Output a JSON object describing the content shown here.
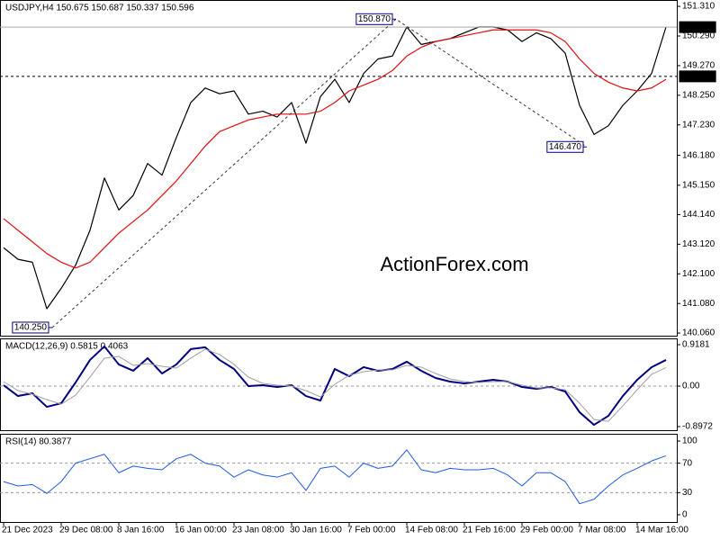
{
  "chart_data": [
    {
      "type": "line",
      "header": "USDJPY,H4  150.675 150.687 150.337 150.596",
      "watermark": "ActionForex.com",
      "ylim": [
        139.97,
        151.53
      ],
      "yticks": [
        {
          "value": 151.31,
          "label": "151.310"
        },
        {
          "value": 150.29,
          "label": "150.290"
        },
        {
          "value": 149.27,
          "label": "149.270"
        },
        {
          "value": 148.25,
          "label": "148.250"
        },
        {
          "value": 147.23,
          "label": "147.230"
        },
        {
          "value": 146.18,
          "label": "146.180"
        },
        {
          "value": 145.15,
          "label": "145.150"
        },
        {
          "value": 144.14,
          "label": "144.140"
        },
        {
          "value": 143.12,
          "label": "143.120"
        },
        {
          "value": 142.1,
          "label": "142.100"
        },
        {
          "value": 141.08,
          "label": "141.080"
        },
        {
          "value": 140.06,
          "label": "140.060"
        }
      ],
      "series": [
        {
          "color": "#000000",
          "values": [
            143.0,
            142.6,
            142.5,
            140.9,
            141.6,
            142.4,
            143.6,
            145.4,
            144.3,
            144.8,
            145.9,
            145.5,
            146.8,
            148.0,
            148.5,
            148.3,
            148.4,
            147.6,
            147.7,
            147.5,
            148.0,
            146.6,
            148.2,
            148.8,
            148.0,
            149.0,
            149.5,
            149.6,
            150.6,
            150.0,
            150.1,
            150.2,
            150.4,
            150.6,
            150.6,
            150.5,
            150.1,
            150.4,
            150.2,
            149.7,
            147.9,
            146.9,
            147.2,
            147.9,
            148.4,
            149.0,
            150.6
          ]
        },
        {
          "color": "#e01010",
          "values": [
            144.0,
            143.6,
            143.2,
            142.8,
            142.5,
            142.3,
            142.5,
            143.0,
            143.5,
            143.9,
            144.3,
            144.8,
            145.3,
            145.9,
            146.5,
            147.0,
            147.2,
            147.4,
            147.5,
            147.6,
            147.6,
            147.6,
            147.7,
            148.0,
            148.4,
            148.6,
            148.8,
            149.1,
            149.6,
            149.9,
            150.1,
            150.2,
            150.3,
            150.4,
            150.5,
            150.5,
            150.5,
            150.5,
            150.4,
            150.1,
            149.5,
            149.0,
            148.7,
            148.5,
            148.4,
            148.5,
            148.8
          ]
        }
      ],
      "level": {
        "value": 148.9,
        "label": "148.900"
      },
      "last": {
        "value": 150.596,
        "label": "150.596"
      },
      "pivots": [
        {
          "index": 3.375,
          "value": 140.25,
          "label": "140.250"
        },
        {
          "index": 27.25,
          "value": 150.87,
          "label": "150.870"
        },
        {
          "index": 40.5,
          "value": 146.47,
          "label": "146.470"
        }
      ]
    },
    {
      "type": "line",
      "header": "MACD(12,26,9) 0.5815 0.4063",
      "ylim": [
        -0.978,
        1.058
      ],
      "yticks": [
        0.9181,
        {
          "value": 0,
          "label": "0.00"
        },
        -0.8972
      ],
      "levels": [
        0
      ],
      "series": [
        {
          "color": "#000080",
          "width": 2,
          "values": [
            0.02,
            -0.22,
            -0.16,
            -0.46,
            -0.38,
            0.08,
            0.58,
            0.88,
            0.48,
            0.34,
            0.62,
            0.28,
            0.48,
            0.82,
            0.86,
            0.58,
            0.38,
            0,
            0.02,
            -0.02,
            0.02,
            -0.22,
            -0.32,
            0.38,
            0.22,
            0.42,
            0.34,
            0.38,
            0.54,
            0.34,
            0.18,
            0.1,
            0.06,
            0.1,
            0.14,
            0.1,
            -0.02,
            -0.06,
            -0.02,
            -0.12,
            -0.58,
            -0.86,
            -0.66,
            -0.22,
            0.14,
            0.42,
            0.58
          ]
        },
        {
          "color": "#a0a0a0",
          "width": 1,
          "values": [
            0.1,
            -0.1,
            -0.18,
            -0.3,
            -0.4,
            -0.2,
            0.2,
            0.62,
            0.66,
            0.46,
            0.5,
            0.44,
            0.4,
            0.62,
            0.82,
            0.7,
            0.48,
            0.2,
            0.06,
            0.02,
            0,
            -0.1,
            -0.24,
            0.04,
            0.24,
            0.32,
            0.36,
            0.36,
            0.46,
            0.42,
            0.28,
            0.16,
            0.1,
            0.08,
            0.1,
            0.1,
            0.02,
            -0.04,
            -0.04,
            -0.08,
            -0.38,
            -0.74,
            -0.78,
            -0.44,
            -0.08,
            0.26,
            0.41
          ]
        }
      ]
    },
    {
      "type": "line",
      "header": "RSI(14) 80.3877",
      "ylim": [
        -9.8,
        109.8
      ],
      "yticks": [
        100,
        70,
        30,
        0
      ],
      "levels": [
        70,
        30
      ],
      "series": [
        {
          "color": "#1e5ae6",
          "width": 1,
          "values": [
            45,
            39,
            41,
            29,
            45,
            70,
            76,
            82,
            57,
            66,
            63,
            61,
            76,
            82,
            70,
            66,
            51,
            61,
            54,
            51,
            57,
            33,
            63,
            66,
            51,
            70,
            63,
            66,
            88,
            61,
            57,
            63,
            61,
            61,
            63,
            54,
            39,
            57,
            57,
            45,
            15,
            21,
            39,
            54,
            63,
            73,
            80
          ]
        }
      ],
      "categories": [
        "21 Dec 2023",
        null,
        null,
        null,
        "29 Dec 08:00",
        null,
        null,
        null,
        "8 Jan 16:00",
        null,
        null,
        null,
        "16 Jan 00:00",
        null,
        null,
        null,
        "23 Jan 08:00",
        null,
        null,
        null,
        "30 Jan 16:00",
        null,
        null,
        null,
        "7 Feb 00:00",
        null,
        null,
        null,
        "14 Feb 08:00",
        null,
        null,
        null,
        "21 Feb 16:00",
        null,
        null,
        null,
        "29 Feb 00:00",
        null,
        null,
        null,
        "7 Mar 08:00",
        null,
        null,
        null,
        "14 Mar 16:00",
        null,
        null
      ]
    }
  ]
}
